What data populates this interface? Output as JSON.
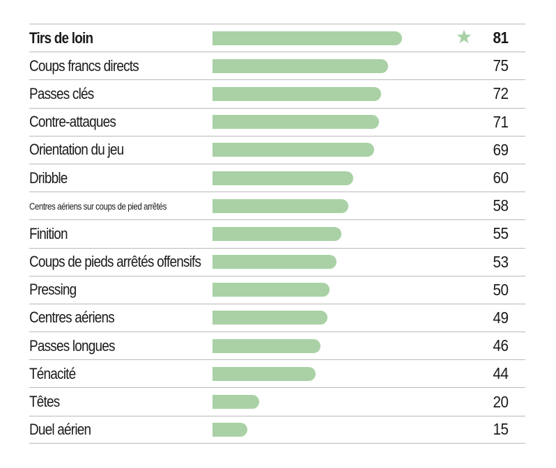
{
  "colors": {
    "bar": "#a9d1a5",
    "star": "#a9d1a5",
    "rule": "#b9b9b9",
    "text": "#1a1a1a"
  },
  "chart_data": {
    "type": "bar",
    "orientation": "horizontal",
    "highlight_index": 0,
    "highlight_icon": "star-icon",
    "xlim": [
      0,
      100
    ],
    "categories": [
      "Tirs de loin",
      "Coups francs directs",
      "Passes clés",
      "Contre-attaques",
      "Orientation du jeu",
      "Dribble",
      "Centres aériens sur coups de pied arrêtés",
      "Finition",
      "Coups de pieds arrêtés offensifs",
      "Pressing",
      "Centres aériens",
      "Passes longues",
      "Ténacité",
      "Têtes",
      "Duel aérien"
    ],
    "values": [
      81,
      75,
      72,
      71,
      69,
      60,
      58,
      55,
      53,
      50,
      49,
      46,
      44,
      20,
      15
    ],
    "grid": false,
    "legend": "none"
  }
}
